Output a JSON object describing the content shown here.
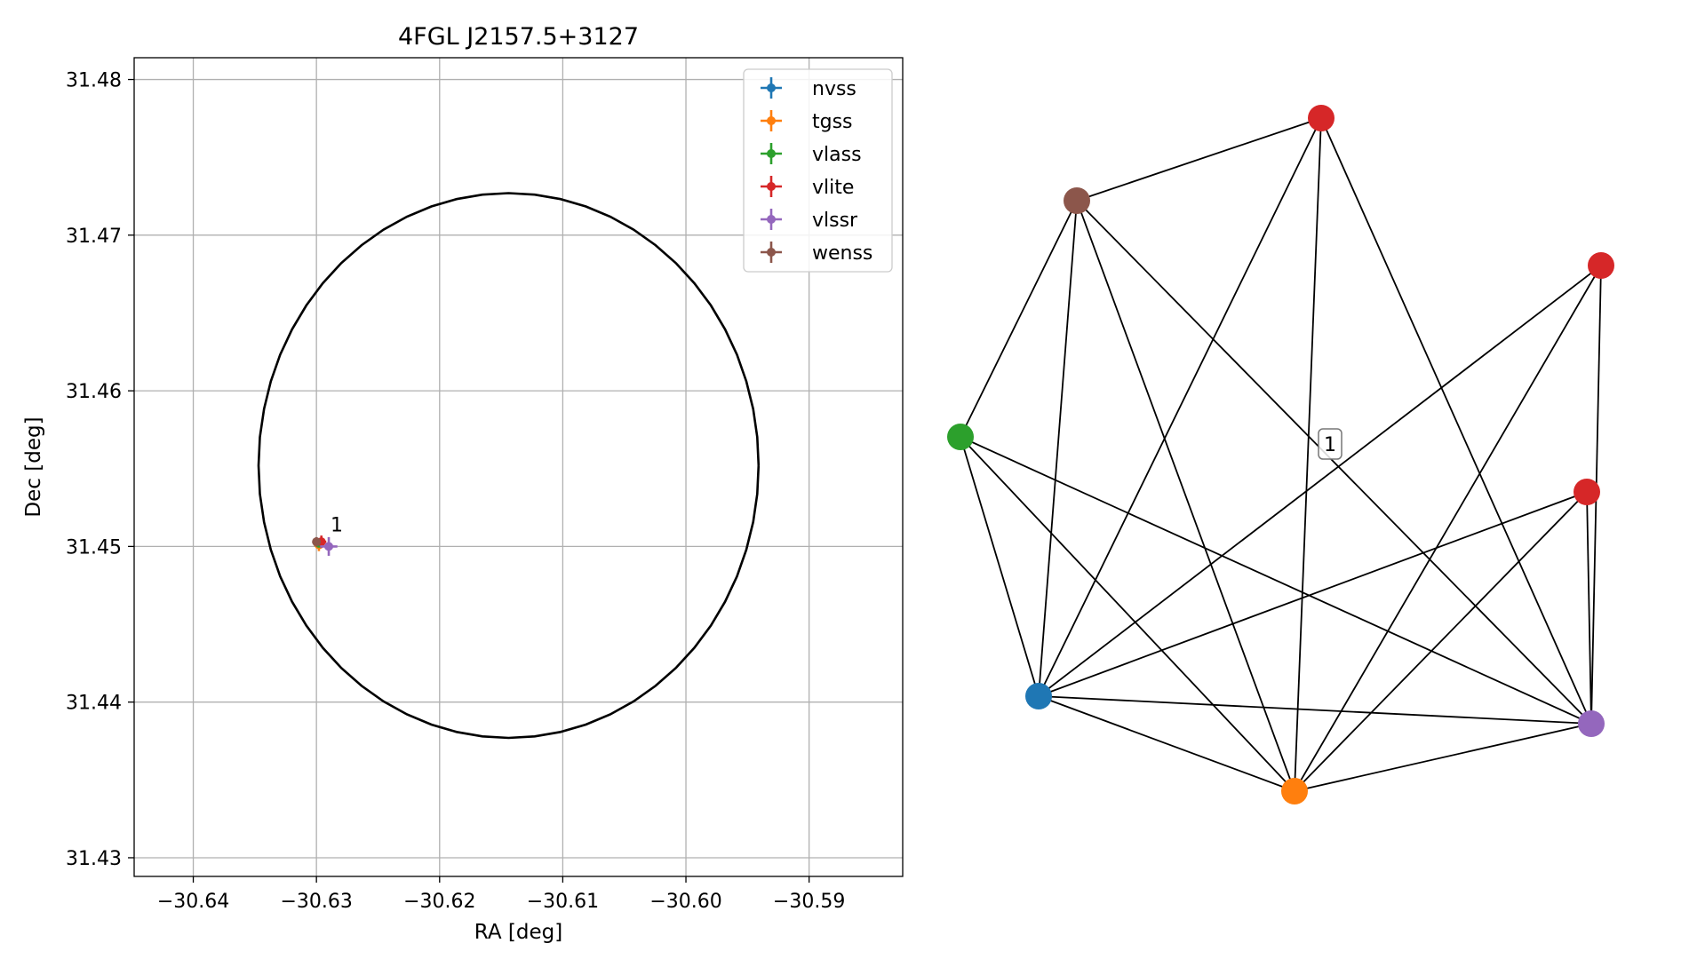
{
  "chart_data": [
    {
      "type": "scatter",
      "title": "4FGL J2157.5+3127",
      "xlabel": "RA [deg]",
      "ylabel": "Dec [deg]",
      "xlim": [
        -30.6448,
        -30.5824
      ],
      "ylim": [
        31.4288,
        31.4814
      ],
      "xticks": [
        -30.64,
        -30.63,
        -30.62,
        -30.61,
        -30.6,
        -30.59
      ],
      "xtick_labels": [
        "−30.64",
        "−30.63",
        "−30.62",
        "−30.61",
        "−30.60",
        "−30.59"
      ],
      "yticks": [
        31.43,
        31.44,
        31.45,
        31.46,
        31.47,
        31.48
      ],
      "ytick_labels": [
        "31.43",
        "31.44",
        "31.45",
        "31.46",
        "31.47",
        "31.48"
      ],
      "grid": true,
      "legend_position": "top-right",
      "circle": {
        "center": [
          -30.6144,
          31.4552
        ],
        "radius_ra": 0.0203,
        "radius_dec": 0.0175,
        "color": "#000000"
      },
      "series": [
        {
          "name": "nvss",
          "color": "#1f77b4",
          "x": -30.6299,
          "y": 31.4502,
          "xerr": 0.0003,
          "yerr": 0.0003
        },
        {
          "name": "tgss",
          "color": "#ff7f0e",
          "x": -30.6298,
          "y": 31.4501,
          "xerr": 0.0004,
          "yerr": 0.0004
        },
        {
          "name": "vlass",
          "color": "#2ca02c",
          "x": -30.6298,
          "y": 31.4502,
          "xerr": 0.0001,
          "yerr": 0.0001
        },
        {
          "name": "vlite",
          "color": "#d62728",
          "x": -30.6296,
          "y": 31.4503,
          "xerr": 0.0004,
          "yerr": 0.0004
        },
        {
          "name": "vlssr",
          "color": "#9467bd",
          "x": -30.629,
          "y": 31.45,
          "xerr": 0.0007,
          "yerr": 0.0006
        },
        {
          "name": "wenss",
          "color": "#8c564b",
          "x": -30.63,
          "y": 31.4503,
          "xerr": 0.0003,
          "yerr": 0.0003
        }
      ],
      "annotations": [
        {
          "text": "1",
          "x": -30.629,
          "y": 31.4513
        }
      ]
    },
    {
      "type": "network",
      "label": "1",
      "nodes": [
        {
          "id": "vlite-a",
          "color": "#d62728"
        },
        {
          "id": "wenss",
          "color": "#8c564b"
        },
        {
          "id": "vlite-b",
          "color": "#d62728"
        },
        {
          "id": "vlass",
          "color": "#2ca02c"
        },
        {
          "id": "vlite-c",
          "color": "#d62728"
        },
        {
          "id": "nvss",
          "color": "#1f77b4"
        },
        {
          "id": "vlssr",
          "color": "#9467bd"
        },
        {
          "id": "tgss",
          "color": "#ff7f0e"
        }
      ],
      "edges": [
        [
          "vlite-a",
          "wenss"
        ],
        [
          "vlite-a",
          "nvss"
        ],
        [
          "vlite-a",
          "tgss"
        ],
        [
          "vlite-a",
          "vlssr"
        ],
        [
          "wenss",
          "vlass"
        ],
        [
          "wenss",
          "nvss"
        ],
        [
          "wenss",
          "tgss"
        ],
        [
          "wenss",
          "vlssr"
        ],
        [
          "vlite-b",
          "nvss"
        ],
        [
          "vlite-b",
          "tgss"
        ],
        [
          "vlite-b",
          "vlssr"
        ],
        [
          "vlass",
          "nvss"
        ],
        [
          "vlass",
          "tgss"
        ],
        [
          "vlass",
          "vlssr"
        ],
        [
          "vlite-c",
          "nvss"
        ],
        [
          "vlite-c",
          "tgss"
        ],
        [
          "vlite-c",
          "vlssr"
        ],
        [
          "nvss",
          "tgss"
        ],
        [
          "nvss",
          "vlssr"
        ],
        [
          "tgss",
          "vlssr"
        ]
      ]
    }
  ]
}
